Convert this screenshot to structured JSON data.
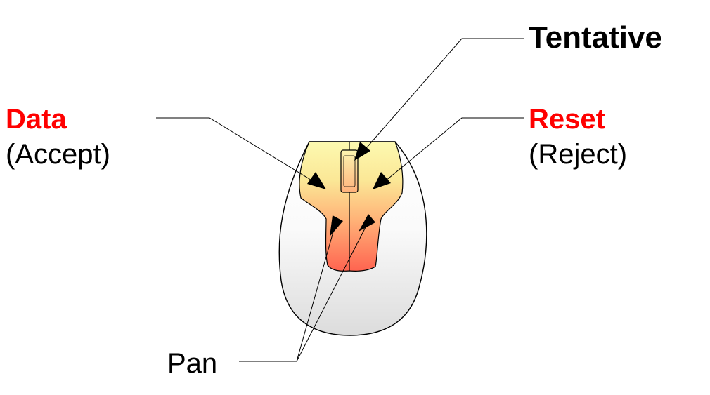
{
  "labels": {
    "tentative": "Tentative",
    "data": "Data",
    "accept": "(Accept)",
    "reset": "Reset",
    "reject": "(Reject)",
    "pan": "Pan"
  },
  "colors": {
    "action_label": "#ff0000",
    "text": "#000000",
    "button_top": "#fcf7a6",
    "button_bottom": "#ff6a55",
    "body_top": "#ffffff",
    "body_bottom": "#e1e1e1"
  },
  "icons": {
    "device": "mouse-body-icon",
    "arrows": "arrowhead-icon"
  }
}
